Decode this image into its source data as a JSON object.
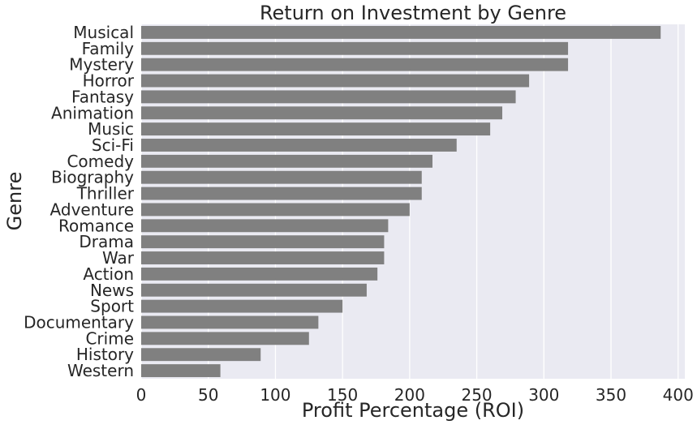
{
  "chart_data": {
    "type": "bar",
    "orientation": "horizontal",
    "title": "Return on Investment by Genre",
    "xlabel": "Profit Percentage (ROI)",
    "ylabel": "Genre",
    "xlim": [
      0,
      405
    ],
    "xticks": [
      0,
      50,
      100,
      150,
      200,
      250,
      300,
      350,
      400
    ],
    "grid": true,
    "colors": {
      "bar": "#808080",
      "background": "#eaeaf2",
      "grid": "#ffffff"
    },
    "categories": [
      "Musical",
      "Family",
      "Mystery",
      "Horror",
      "Fantasy",
      "Animation",
      "Music",
      "Sci-Fi",
      "Comedy",
      "Biography",
      "Thriller",
      "Adventure",
      "Romance",
      "Drama",
      "War",
      "Action",
      "News",
      "Sport",
      "Documentary",
      "Crime",
      "History",
      "Western"
    ],
    "values": [
      387,
      318,
      318,
      289,
      279,
      269,
      260,
      235,
      217,
      209,
      209,
      200,
      184,
      181,
      181,
      176,
      168,
      150,
      132,
      125,
      89,
      59
    ]
  }
}
